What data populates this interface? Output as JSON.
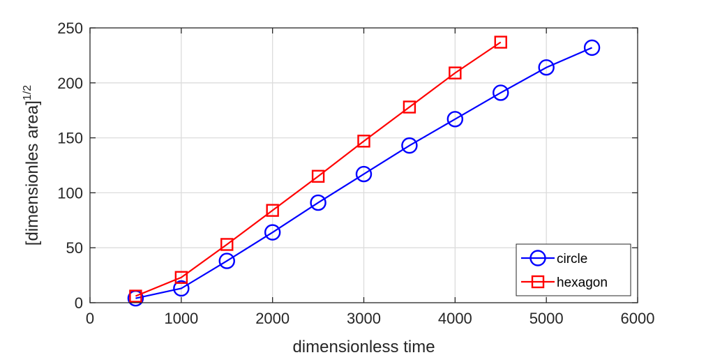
{
  "chart_data": {
    "type": "line",
    "xlabel": "dimensionless time",
    "ylabel": "[dimensionles area]",
    "ylabel_superscript": "1/2",
    "xlim": [
      0,
      6000
    ],
    "ylim": [
      0,
      250
    ],
    "xticks": [
      0,
      1000,
      2000,
      3000,
      4000,
      5000,
      6000
    ],
    "yticks": [
      0,
      50,
      100,
      150,
      200,
      250
    ],
    "grid": true,
    "legend_position": "bottom-right",
    "series": [
      {
        "name": "circle",
        "color": "#0000ff",
        "marker": "circle",
        "x": [
          500,
          1000,
          1500,
          2000,
          2500,
          3000,
          3500,
          4000,
          4500,
          5000,
          5500
        ],
        "y": [
          4,
          13,
          38,
          64,
          91,
          117,
          143,
          167,
          191,
          214,
          232
        ]
      },
      {
        "name": "hexagon",
        "color": "#ff0000",
        "marker": "square",
        "x": [
          500,
          1000,
          1500,
          2000,
          2500,
          3000,
          3500,
          4000,
          4500
        ],
        "y": [
          6,
          23,
          53,
          84,
          115,
          147,
          178,
          209,
          237
        ]
      }
    ]
  }
}
